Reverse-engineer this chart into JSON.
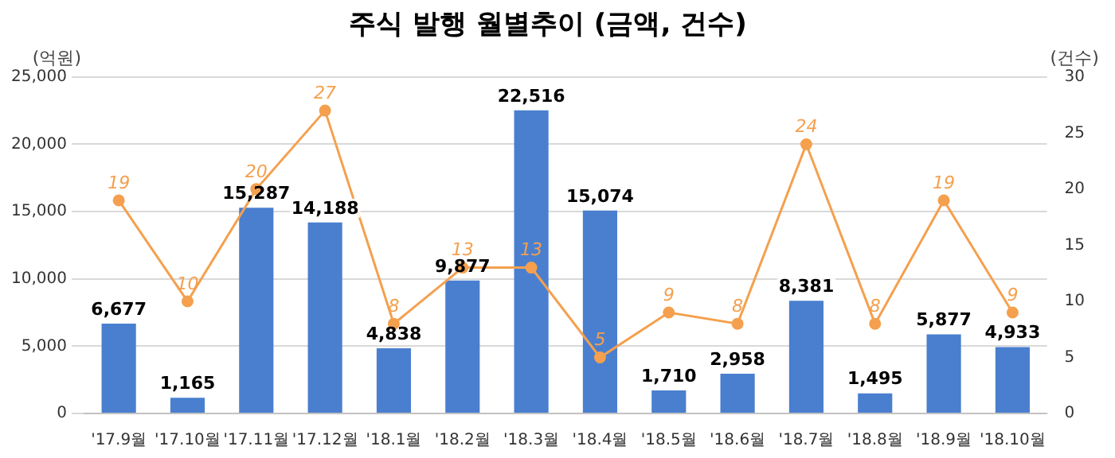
{
  "chart_data": {
    "type": "bar",
    "title": "주식 발행 월별추이 (금액, 건수)",
    "ylabel": "(억원)",
    "y2label": "(건수)",
    "categories": [
      "'17.9월",
      "'17.10월",
      "'17.11월",
      "'17.12월",
      "'18.1월",
      "'18.2월",
      "'18.3월",
      "'18.4월",
      "'18.5월",
      "'18.6월",
      "'18.7월",
      "'18.8월",
      "'18.9월",
      "'18.10월"
    ],
    "series": [
      {
        "color": "#4a7fcf",
        "values": [
          6677,
          1165,
          15287,
          14188,
          4838,
          9877,
          22516,
          15074,
          1710,
          2958,
          8381,
          1495,
          5877,
          4933
        ],
        "value_labels": [
          "6,677",
          "1,165",
          "15,287",
          "14,188",
          "4,838",
          "9,877",
          "22,516",
          "15,074",
          "1,710",
          "2,958",
          "8,381",
          "1,495",
          "5,877",
          "4,933"
        ]
      },
      {
        "type": "line",
        "axis": "y2",
        "color": "#f4a04e",
        "marker": "circle",
        "values": [
          19,
          10,
          20,
          27,
          8,
          13,
          13,
          5,
          9,
          8,
          24,
          8,
          19,
          9
        ],
        "value_labels": [
          "19",
          "10",
          "20",
          "27",
          "8",
          "13",
          "13",
          "5",
          "9",
          "8",
          "24",
          "8",
          "19",
          "9"
        ]
      }
    ],
    "ylim": [
      0,
      25000
    ],
    "yticks": [
      {
        "value": 0,
        "label": "0"
      },
      {
        "value": 5000,
        "label": "5,000"
      },
      {
        "value": 10000,
        "label": "10,000"
      },
      {
        "value": 15000,
        "label": "15,000"
      },
      {
        "value": 20000,
        "label": "20,000"
      },
      {
        "value": 25000,
        "label": "25,000"
      }
    ],
    "y2lim": [
      0,
      30
    ],
    "y2ticks": [
      0,
      5,
      10,
      15,
      20,
      25,
      30
    ],
    "grid": "y",
    "legend": false
  }
}
